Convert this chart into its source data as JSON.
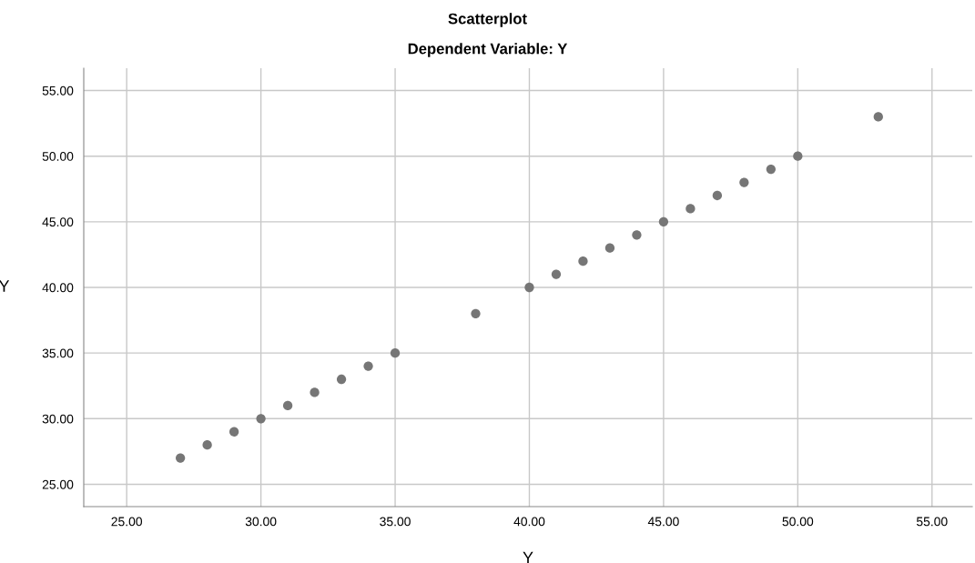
{
  "chart_data": {
    "type": "scatter",
    "title": "Scatterplot",
    "subtitle": "Dependent Variable: Y",
    "xlabel": "Y",
    "ylabel": "Y",
    "series": [
      {
        "color": "#767676",
        "x": [
          27,
          28,
          29,
          30,
          31,
          32,
          33,
          34,
          35,
          38,
          40,
          41,
          42,
          43,
          44,
          45,
          46,
          47,
          48,
          49,
          50,
          53
        ],
        "values": [
          27,
          28,
          29,
          30,
          31,
          32,
          33,
          34,
          35,
          38,
          40,
          41,
          42,
          43,
          44,
          45,
          46,
          47,
          48,
          49,
          50,
          53
        ]
      }
    ],
    "xlim": [
      23.4,
      56.5
    ],
    "ylim": [
      23.3,
      56.7
    ],
    "xticks": [
      {
        "value": 25,
        "label": "25.00"
      },
      {
        "value": 30,
        "label": "30.00"
      },
      {
        "value": 35,
        "label": "35.00"
      },
      {
        "value": 40,
        "label": "40.00"
      },
      {
        "value": 45,
        "label": "45.00"
      },
      {
        "value": 50,
        "label": "50.00"
      },
      {
        "value": 55,
        "label": "55.00"
      }
    ],
    "yticks": [
      {
        "value": 25,
        "label": "25.00"
      },
      {
        "value": 30,
        "label": "30.00"
      },
      {
        "value": 35,
        "label": "35.00"
      },
      {
        "value": 40,
        "label": "40.00"
      },
      {
        "value": 45,
        "label": "45.00"
      },
      {
        "value": 50,
        "label": "50.00"
      },
      {
        "value": 55,
        "label": "55.00"
      }
    ],
    "grid": true,
    "marker": "circle"
  }
}
